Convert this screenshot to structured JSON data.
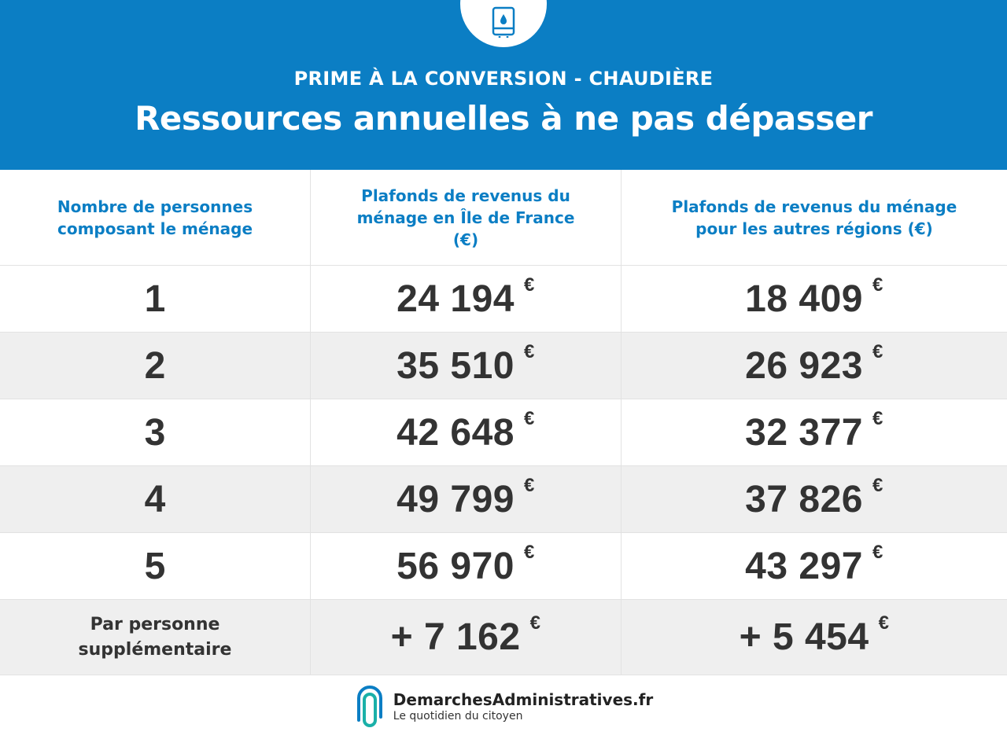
{
  "header": {
    "icon": "water-heater-icon",
    "subtitle": "PRIME À LA CONVERSION - CHAUDIÈRE",
    "title": "Ressources annuelles à ne pas dépasser"
  },
  "colors": {
    "accent": "#0b7ec4",
    "row_alt": "#efefef",
    "text": "#333333"
  },
  "table": {
    "columns": [
      "Nombre de personnes composant le ménage",
      "Plafonds de revenus du ménage en Île de France (€)",
      "Plafonds de revenus du ménage pour les autres régions (€)"
    ],
    "rows": [
      {
        "persons": "1",
        "idf": "24 194",
        "other": "18 409"
      },
      {
        "persons": "2",
        "idf": "35 510",
        "other": "26 923"
      },
      {
        "persons": "3",
        "idf": "42 648",
        "other": "32 377"
      },
      {
        "persons": "4",
        "idf": "49 799",
        "other": "37 826"
      },
      {
        "persons": "5",
        "idf": "56 970",
        "other": "43 297"
      }
    ],
    "extra": {
      "label_line1": "Par personne",
      "label_line2": "supplémentaire",
      "idf": "+ 7 162",
      "other": "+ 5 454"
    },
    "currency": "€"
  },
  "footer": {
    "logo_icon": "paperclip-logo-icon",
    "site": "DemarchesAdministratives.fr",
    "tagline": "Le quotidien du citoyen"
  }
}
